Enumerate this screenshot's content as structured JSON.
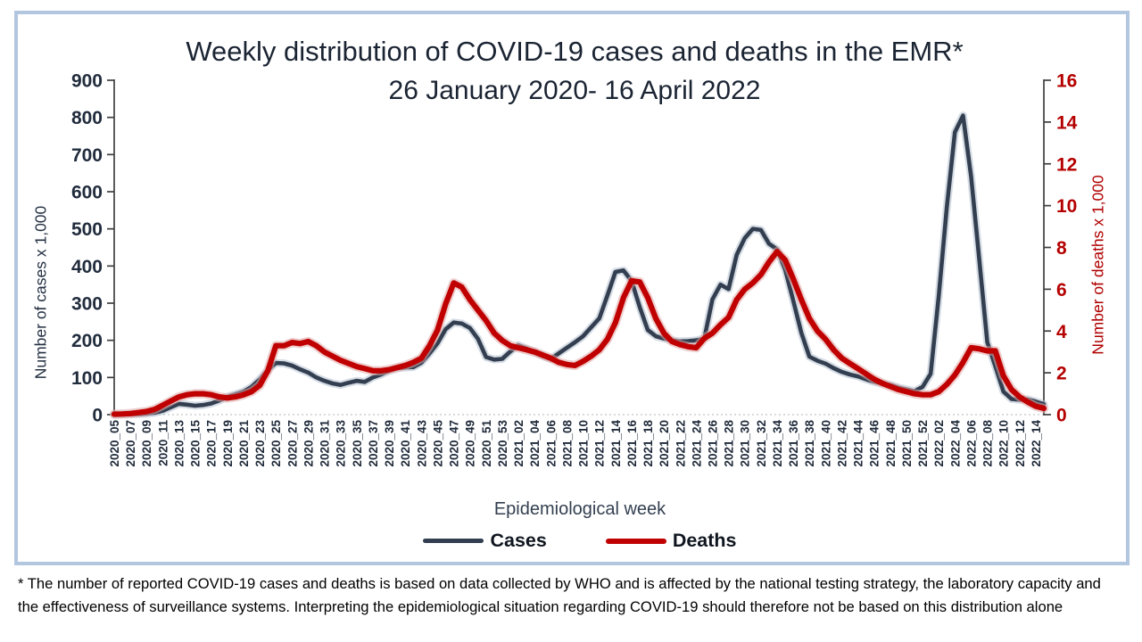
{
  "frame": {
    "border_color": "#b3c6df",
    "background": "#ffffff"
  },
  "title": {
    "line1": "Weekly distribution of COVID-19 cases and deaths in the EMR*",
    "line2": "26 January 2020- 16 April 2022"
  },
  "footnote": {
    "line1": "* The number of reported COVID-19 cases and deaths is based on data collected by WHO and is affected by the national testing strategy, the laboratory capacity and",
    "line2": "the effectiveness of surveillance systems. Interpreting the epidemiological situation regarding COVID-19 should therefore not be based on this distribution alone"
  },
  "chart_data": {
    "type": "line",
    "title": "Weekly distribution of COVID-19 cases and deaths in the EMR*",
    "subtitle": "26 January 2020- 16 April 2022",
    "xlabel": "Epidemiological week",
    "ylabel_left": "Number of cases x 1,000",
    "ylabel_right": "Number of deaths x 1,000",
    "grid": "dotted zero baseline only",
    "legend_position": "bottom",
    "legend": [
      "Cases",
      "Deaths"
    ],
    "axis_line_color": "#3f3f3f",
    "y_left": {
      "min": 0,
      "max": 900,
      "step": 100,
      "tick_color": "#212c3d"
    },
    "y_right": {
      "min": 0,
      "max": 16,
      "step": 2,
      "tick_color": "#b50000"
    },
    "weeks_total": 116,
    "x_tick_every_weeks": 2,
    "x_tick_label_color": "#1f2a3a",
    "x_tick_labels": [
      "2020_05",
      "2020_07",
      "2020_09",
      "2020_11",
      "2020_13",
      "2020_15",
      "2020_17",
      "2020_19",
      "2020_21",
      "2020_23",
      "2020_25",
      "2020_27",
      "2020_29",
      "2020_31",
      "2020_33",
      "2020_35",
      "2020_37",
      "2020_39",
      "2020_41",
      "2020_43",
      "2020_45",
      "2020_47",
      "2020_49",
      "2020_51",
      "2020_53",
      "2021_02",
      "2021_04",
      "2021_06",
      "2021_08",
      "2021_10",
      "2021_12",
      "2021_14",
      "2021_16",
      "2021_18",
      "2021_20",
      "2021_22",
      "2021_24",
      "2021_26",
      "2021_28",
      "2021_30",
      "2021_32",
      "2021_34",
      "2021_36",
      "2021_38",
      "2021_40",
      "2021_42",
      "2021_44",
      "2021_46",
      "2021_48",
      "2021_50",
      "2021_52",
      "2022_02",
      "2022_04",
      "2022_06",
      "2022_08",
      "2022_10",
      "2022_12",
      "2022_14"
    ],
    "series": [
      {
        "name": "Cases",
        "axis": "left",
        "color": "#333f50",
        "halo": "#b3bfd0",
        "width": 4.6,
        "values": [
          0.5,
          0.7,
          1,
          1.5,
          2.5,
          5,
          10,
          20,
          29,
          27,
          24,
          26,
          30,
          38,
          48,
          55,
          62,
          75,
          95,
          120,
          139,
          138,
          132,
          122,
          113,
          100,
          91,
          84,
          80,
          86,
          91,
          88,
          100,
          108,
          118,
          125,
          127,
          128,
          140,
          165,
          192,
          230,
          248,
          245,
          233,
          204,
          155,
          148,
          150,
          170,
          187,
          178,
          168,
          158,
          150,
          165,
          180,
          195,
          211,
          235,
          259,
          320,
          384,
          388,
          360,
          290,
          228,
          211,
          205,
          200,
          197,
          198,
          200,
          205,
          310,
          350,
          338,
          430,
          475,
          500,
          497,
          460,
          445,
          390,
          307,
          220,
          156,
          145,
          137,
          125,
          115,
          108,
          103,
          95,
          88,
          84,
          80,
          73,
          68,
          63,
          75,
          110,
          320,
          560,
          760,
          805,
          640,
          420,
          195,
          130,
          62,
          42,
          40,
          41,
          35,
          28
        ]
      },
      {
        "name": "Deaths",
        "axis": "right",
        "color": "#c00000",
        "halo": "#e0a8a8",
        "width": 6.2,
        "values": [
          0.02,
          0.03,
          0.05,
          0.1,
          0.15,
          0.25,
          0.45,
          0.65,
          0.85,
          0.95,
          1.0,
          1.0,
          0.95,
          0.85,
          0.8,
          0.85,
          0.95,
          1.1,
          1.4,
          2.1,
          3.3,
          3.3,
          3.45,
          3.4,
          3.5,
          3.3,
          3.0,
          2.8,
          2.6,
          2.45,
          2.3,
          2.2,
          2.1,
          2.1,
          2.15,
          2.25,
          2.35,
          2.5,
          2.7,
          3.3,
          4.05,
          5.3,
          6.3,
          6.1,
          5.5,
          5.0,
          4.5,
          3.9,
          3.55,
          3.3,
          3.2,
          3.1,
          3.0,
          2.85,
          2.7,
          2.5,
          2.4,
          2.35,
          2.55,
          2.8,
          3.1,
          3.6,
          4.4,
          5.6,
          6.4,
          6.35,
          5.6,
          4.6,
          3.9,
          3.5,
          3.35,
          3.25,
          3.2,
          3.65,
          3.9,
          4.3,
          4.65,
          5.5,
          6.0,
          6.3,
          6.7,
          7.3,
          7.8,
          7.4,
          6.5,
          5.5,
          4.6,
          4.0,
          3.6,
          3.1,
          2.7,
          2.45,
          2.2,
          1.95,
          1.7,
          1.5,
          1.35,
          1.2,
          1.1,
          1.0,
          0.95,
          0.95,
          1.1,
          1.45,
          1.9,
          2.5,
          3.2,
          3.15,
          3.05,
          3.05,
          1.85,
          1.2,
          0.85,
          0.6,
          0.4,
          0.3
        ]
      }
    ]
  }
}
